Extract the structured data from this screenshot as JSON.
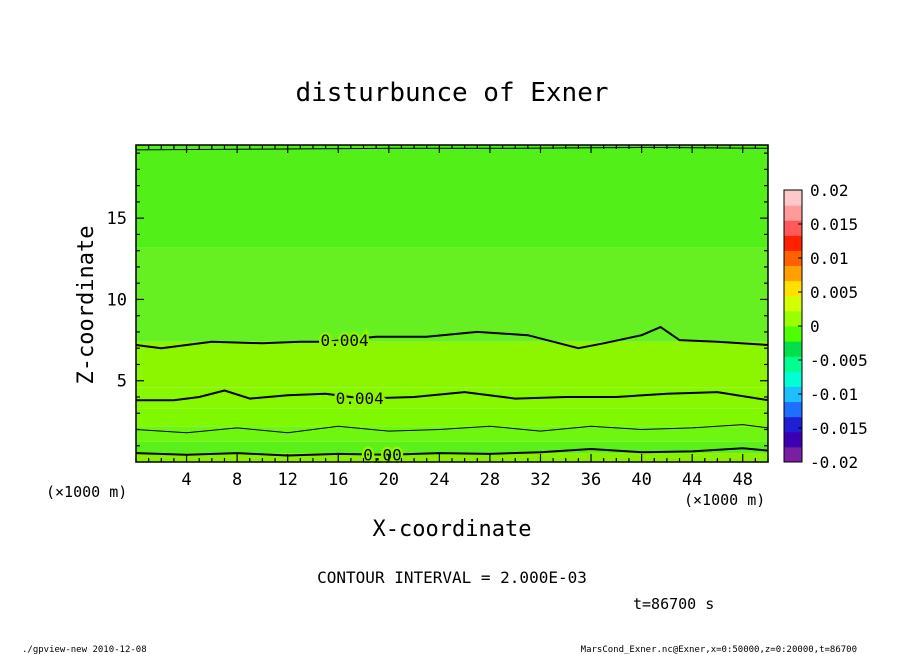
{
  "chart_data": {
    "type": "contour",
    "title": "disturbunce of Exner",
    "xlabel": "X-coordinate",
    "ylabel": "Z-coordinate",
    "x_unit_left": "(×1000 m)",
    "x_unit_right": "(×1000 m)",
    "xlim": [
      0,
      50
    ],
    "ylim": [
      0,
      19.5
    ],
    "xticks": [
      4,
      8,
      12,
      16,
      20,
      24,
      28,
      32,
      36,
      40,
      44,
      48
    ],
    "yticks": [
      5,
      10,
      15
    ],
    "contour_interval_text": "CONTOUR INTERVAL = 2.000E-03",
    "time_text": "t=86700 s",
    "footer_left": "./gpview-new   2010-12-08",
    "footer_right": "MarsCond_Exner.nc@Exner,x=0:50000,z=0:20000,t=86700",
    "colorbar": {
      "min": -0.02,
      "max": 0.02,
      "tick_labels": [
        "0.02",
        "0.015",
        "0.01",
        "0.005",
        "0",
        "-0.005",
        "-0.01",
        "-0.015",
        "-0.02"
      ],
      "tick_values": [
        0.02,
        0.015,
        0.01,
        0.005,
        0,
        -0.005,
        -0.01,
        -0.015,
        -0.02
      ],
      "colors": [
        "#7b1fa2",
        "#3d00b0",
        "#1f1fd6",
        "#1f6fff",
        "#1fbfff",
        "#00ffd5",
        "#00ff90",
        "#00e04a",
        "#4dff00",
        "#9aff00",
        "#d4ff00",
        "#ffe000",
        "#ffa000",
        "#ff6000",
        "#ff2000",
        "#ff5a5a",
        "#ff9a9a",
        "#ffc8c8"
      ]
    },
    "bands": [
      {
        "z_top": 0.55,
        "color": "#8af000"
      },
      {
        "z_top": 1.25,
        "color": "#5cf01a"
      },
      {
        "z_top": 2.2,
        "color": "#6ef510"
      },
      {
        "z_top": 3.3,
        "color": "#80f800"
      },
      {
        "z_top": 4.6,
        "color": "#88f800"
      },
      {
        "z_top": 7.4,
        "color": "#8cf500"
      },
      {
        "z_top": 13.2,
        "color": "#66f022"
      },
      {
        "z_top": 19.5,
        "color": "#52f018"
      }
    ],
    "contours": [
      {
        "label": "0.00",
        "label_x": 19.5,
        "width": 2,
        "x": [
          0,
          4,
          8,
          12,
          16,
          20,
          24,
          28,
          32,
          36,
          40,
          44,
          48,
          50
        ],
        "z": [
          0.55,
          0.45,
          0.55,
          0.4,
          0.5,
          0.45,
          0.55,
          0.5,
          0.6,
          0.8,
          0.6,
          0.65,
          0.85,
          0.7
        ]
      },
      {
        "label": "",
        "label_x": null,
        "width": 1,
        "x": [
          0,
          4,
          8,
          12,
          16,
          20,
          24,
          28,
          32,
          36,
          40,
          44,
          48,
          50
        ],
        "z": [
          2.0,
          1.8,
          2.1,
          1.8,
          2.2,
          1.9,
          2.0,
          2.2,
          1.9,
          2.2,
          2.0,
          2.1,
          2.3,
          2.1
        ]
      },
      {
        "label": "0.004",
        "label_x": 17.7,
        "width": 2,
        "x": [
          0,
          3,
          5,
          7,
          9,
          12,
          15,
          18,
          22,
          26,
          30,
          34,
          38,
          42,
          46,
          50
        ],
        "z": [
          3.8,
          3.8,
          4.0,
          4.4,
          3.9,
          4.1,
          4.2,
          3.9,
          4.0,
          4.3,
          3.9,
          4.0,
          4.0,
          4.2,
          4.3,
          3.8
        ]
      },
      {
        "label": "0.004",
        "label_x": 16.5,
        "width": 2,
        "x": [
          0,
          2,
          6,
          10,
          13,
          15,
          19,
          23,
          27,
          31,
          35,
          37,
          40,
          41.5,
          43,
          46,
          50
        ],
        "z": [
          7.2,
          7.0,
          7.4,
          7.3,
          7.4,
          7.4,
          7.7,
          7.7,
          8.0,
          7.8,
          7.0,
          7.3,
          7.8,
          8.3,
          7.5,
          7.4,
          7.2
        ]
      },
      {
        "label": "",
        "label_x": null,
        "width": 1,
        "x": [
          0,
          10,
          20,
          30,
          40,
          50
        ],
        "z": [
          19.2,
          19.25,
          19.3,
          19.3,
          19.35,
          19.3
        ]
      }
    ]
  }
}
